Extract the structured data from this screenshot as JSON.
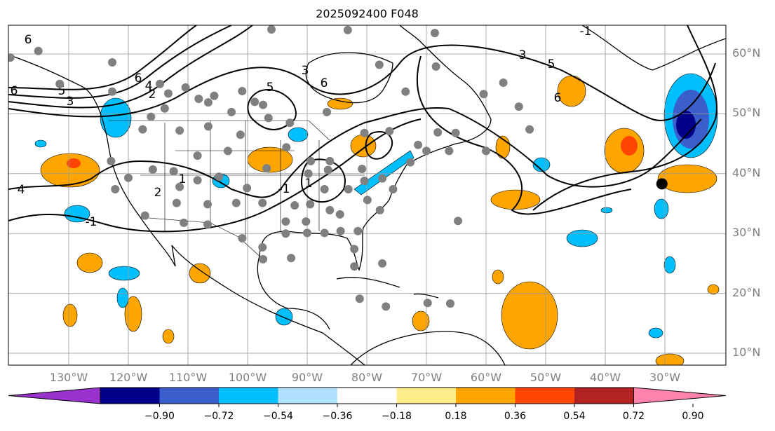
{
  "title": "2025092400 F048",
  "lat_labels": [
    "60°N",
    "50°N",
    "40°N",
    "30°N",
    "20°N",
    "10°N"
  ],
  "lon_labels": [
    "130°W",
    "120°W",
    "110°W",
    "100°W",
    "90°W",
    "80°W",
    "70°W",
    "60°W",
    "50°W",
    "40°W",
    "30°W"
  ],
  "colorbar": {
    "ticks": [
      "−0.90",
      "−0.72",
      "−0.54",
      "−0.36",
      "−0.18",
      "0.18",
      "0.36",
      "0.54",
      "0.72",
      "0.90"
    ],
    "colors": [
      "#9932cc",
      "#00008b",
      "#3a5fcd",
      "#00bfff",
      "#b0e2ff",
      "#ffffff",
      "#ffec8b",
      "#ffa500",
      "#ff4500",
      "#b22222",
      "#ff82ab"
    ]
  },
  "contour_labels": [
    "6",
    "6",
    "4",
    "2",
    "3",
    "5",
    "4",
    "-1",
    "1",
    "2",
    "3",
    "6",
    "5",
    "-1",
    "1",
    "3",
    "5",
    "6",
    "-1",
    "6"
  ],
  "station_dots": [
    [
      -139.8,
      59.4
    ],
    [
      -135.1,
      60.5
    ],
    [
      -122.7,
      58.6
    ],
    [
      -131.5,
      55.0
    ],
    [
      -122.7,
      53.7
    ],
    [
      -113.3,
      53.4
    ],
    [
      -114.7,
      55.0
    ],
    [
      -110.4,
      54.4
    ],
    [
      -108.2,
      52.5
    ],
    [
      -106.6,
      51.9
    ],
    [
      -105.6,
      53.0
    ],
    [
      -113.9,
      50.9
    ],
    [
      -116.2,
      49.5
    ],
    [
      -102.7,
      50.3
    ],
    [
      -100.9,
      53.8
    ],
    [
      -98.8,
      52.0
    ],
    [
      -101.2,
      46.5
    ],
    [
      -106.6,
      47.9
    ],
    [
      -111.4,
      47.2
    ],
    [
      -117.6,
      47.4
    ],
    [
      -122.9,
      42.1
    ],
    [
      -115.9,
      40.7
    ],
    [
      -108.4,
      43.0
    ],
    [
      -103.3,
      43.8
    ],
    [
      -112.4,
      40.4
    ],
    [
      -104.8,
      39.5
    ],
    [
      -108.4,
      38.9
    ],
    [
      -111.4,
      37.8
    ],
    [
      -120.0,
      39.3
    ],
    [
      -122.2,
      37.4
    ],
    [
      -100.1,
      37.6
    ],
    [
      -101.9,
      35.1
    ],
    [
      -106.7,
      34.9
    ],
    [
      -111.9,
      35.1
    ],
    [
      -117.2,
      33.0
    ],
    [
      -110.7,
      31.8
    ],
    [
      -106.7,
      31.5
    ],
    [
      -100.9,
      29.2
    ],
    [
      -97.5,
      35.1
    ],
    [
      -97.5,
      27.7
    ],
    [
      -97.4,
      25.7
    ],
    [
      -93.6,
      32.0
    ],
    [
      -90.2,
      32.0
    ],
    [
      -93.6,
      30.0
    ],
    [
      -90.0,
      30.1
    ],
    [
      -87.1,
      30.1
    ],
    [
      -84.4,
      30.4
    ],
    [
      -82.1,
      27.4
    ],
    [
      -81.5,
      30.4
    ],
    [
      -86.2,
      33.9
    ],
    [
      -89.5,
      34.9
    ],
    [
      -84.5,
      33.2
    ],
    [
      -92.1,
      34.7
    ],
    [
      -87.1,
      37.4
    ],
    [
      -83.1,
      37.4
    ],
    [
      -79.9,
      35.6
    ],
    [
      -77.8,
      33.9
    ],
    [
      -75.6,
      37.4
    ],
    [
      -77.4,
      39.2
    ],
    [
      -80.4,
      38.8
    ],
    [
      -80.8,
      40.8
    ],
    [
      -86.5,
      40.6
    ],
    [
      -89.8,
      40.0
    ],
    [
      -89.4,
      42.1
    ],
    [
      -93.5,
      44.4
    ],
    [
      -96.8,
      40.9
    ],
    [
      -96.5,
      49.3
    ],
    [
      -97.4,
      51.5
    ],
    [
      -92.9,
      48.5
    ],
    [
      -86.7,
      50.3
    ],
    [
      -83.2,
      64.0
    ],
    [
      -96.0,
      64.1
    ],
    [
      -77.9,
      58.2
    ],
    [
      -73.5,
      53.7
    ],
    [
      -80.4,
      46.8
    ],
    [
      -76.2,
      47.1
    ],
    [
      -71.4,
      44.8
    ],
    [
      -72.7,
      41.9
    ],
    [
      -70.0,
      43.8
    ],
    [
      -66.2,
      43.8
    ],
    [
      -68.1,
      46.9
    ],
    [
      -65.1,
      46.8
    ],
    [
      -60.0,
      43.8
    ],
    [
      -60.4,
      53.3
    ],
    [
      -54.5,
      51.2
    ],
    [
      -52.7,
      47.4
    ],
    [
      -57.1,
      55.2
    ],
    [
      -68.4,
      57.9
    ],
    [
      -68.6,
      63.5
    ],
    [
      -64.7,
      32.1
    ],
    [
      -77.4,
      25.0
    ],
    [
      -82.1,
      24.5
    ],
    [
      -81.2,
      19.1
    ],
    [
      -76.8,
      17.8
    ],
    [
      -69.8,
      18.4
    ],
    [
      -66.0,
      18.3
    ],
    [
      -92.7,
      25.9
    ],
    [
      -86.2,
      42.1
    ]
  ],
  "storm_marker": [
    -30.5,
    38.3
  ]
}
